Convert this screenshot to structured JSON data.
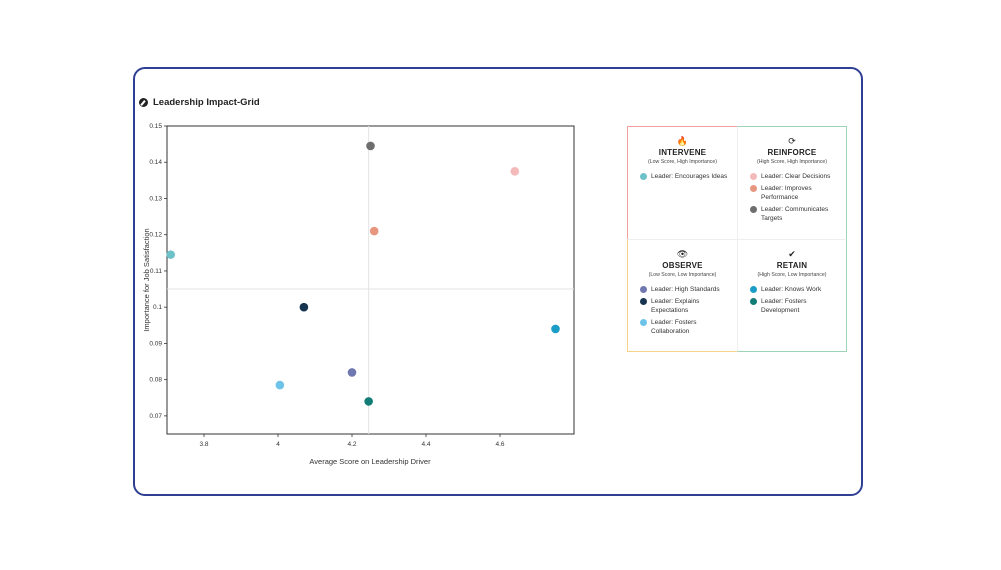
{
  "title": "Leadership Impact-Grid",
  "chart_data": {
    "type": "scatter",
    "xlabel": "Average Score on Leadership Driver",
    "ylabel": "Importance for Job Satisfaction",
    "xlim": [
      3.7,
      4.8
    ],
    "ylim": [
      0.065,
      0.15
    ],
    "x_ticks": [
      "3.8",
      "4",
      "4.2",
      "4.4",
      "4.6"
    ],
    "y_ticks": [
      "0.07",
      "0.08",
      "0.09",
      "0.1",
      "0.11",
      "0.12",
      "0.13",
      "0.14",
      "0.15"
    ],
    "x_tick_values": [
      3.8,
      4.0,
      4.2,
      4.4,
      4.6
    ],
    "y_tick_values": [
      0.07,
      0.08,
      0.09,
      0.1,
      0.11,
      0.12,
      0.13,
      0.14,
      0.15
    ],
    "reference_lines": {
      "x": 4.245,
      "y": 0.105
    },
    "grid": false,
    "legend_position": "right",
    "points": [
      {
        "name": "Leader: Encourages Ideas",
        "x": 3.71,
        "y": 0.1145,
        "color": "#6cc2c8"
      },
      {
        "name": "Leader: Clear Decisions",
        "x": 4.64,
        "y": 0.1375,
        "color": "#f4b9b9"
      },
      {
        "name": "Leader: Improves Performance",
        "x": 4.26,
        "y": 0.121,
        "color": "#e79780"
      },
      {
        "name": "Leader: Communicates Targets",
        "x": 4.25,
        "y": 0.1445,
        "color": "#6e6e6e"
      },
      {
        "name": "Leader: High Standards",
        "x": 4.2,
        "y": 0.082,
        "color": "#6f78b0"
      },
      {
        "name": "Leader: Explains Expectations",
        "x": 4.07,
        "y": 0.1,
        "color": "#173550"
      },
      {
        "name": "Leader: Fosters Collaboration",
        "x": 4.005,
        "y": 0.0785,
        "color": "#6ec4e8"
      },
      {
        "name": "Leader: Knows Work",
        "x": 4.75,
        "y": 0.094,
        "color": "#1c9dc8"
      },
      {
        "name": "Leader: Fosters Development",
        "x": 4.245,
        "y": 0.074,
        "color": "#137c76"
      }
    ]
  },
  "legend": {
    "intervene": {
      "icon": "fire-icon",
      "icon_glyph": "🔥",
      "label": "INTERVENE",
      "sub": "(Low Score, High Importance)",
      "items": [
        {
          "label": "Leader: Encourages Ideas",
          "color": "#6cc2c8"
        }
      ]
    },
    "reinforce": {
      "icon": "refresh-icon",
      "icon_glyph": "⟳",
      "label": "REINFORCE",
      "sub": "(High Score, High Importance)",
      "items": [
        {
          "label": "Leader: Clear Decisions",
          "color": "#f4b9b9"
        },
        {
          "label": "Leader: Improves Performance",
          "color": "#e79780"
        },
        {
          "label": "Leader: Communicates Targets",
          "color": "#6e6e6e"
        }
      ]
    },
    "observe": {
      "icon": "eye-icon",
      "icon_glyph": "👁",
      "label": "OBSERVE",
      "sub": "(Low Score, Low Importance)",
      "items": [
        {
          "label": "Leader: High Standards",
          "color": "#6f78b0"
        },
        {
          "label": "Leader: Explains Expectations",
          "color": "#173550"
        },
        {
          "label": "Leader: Fosters Collaboration",
          "color": "#6ec4e8"
        }
      ]
    },
    "retain": {
      "icon": "checkmark-icon",
      "icon_glyph": "✔",
      "label": "RETAIN",
      "sub": "(High Score, Low Importance)",
      "items": [
        {
          "label": "Leader: Knows Work",
          "color": "#1c9dc8"
        },
        {
          "label": "Leader: Fosters Development",
          "color": "#137c76"
        }
      ]
    }
  }
}
